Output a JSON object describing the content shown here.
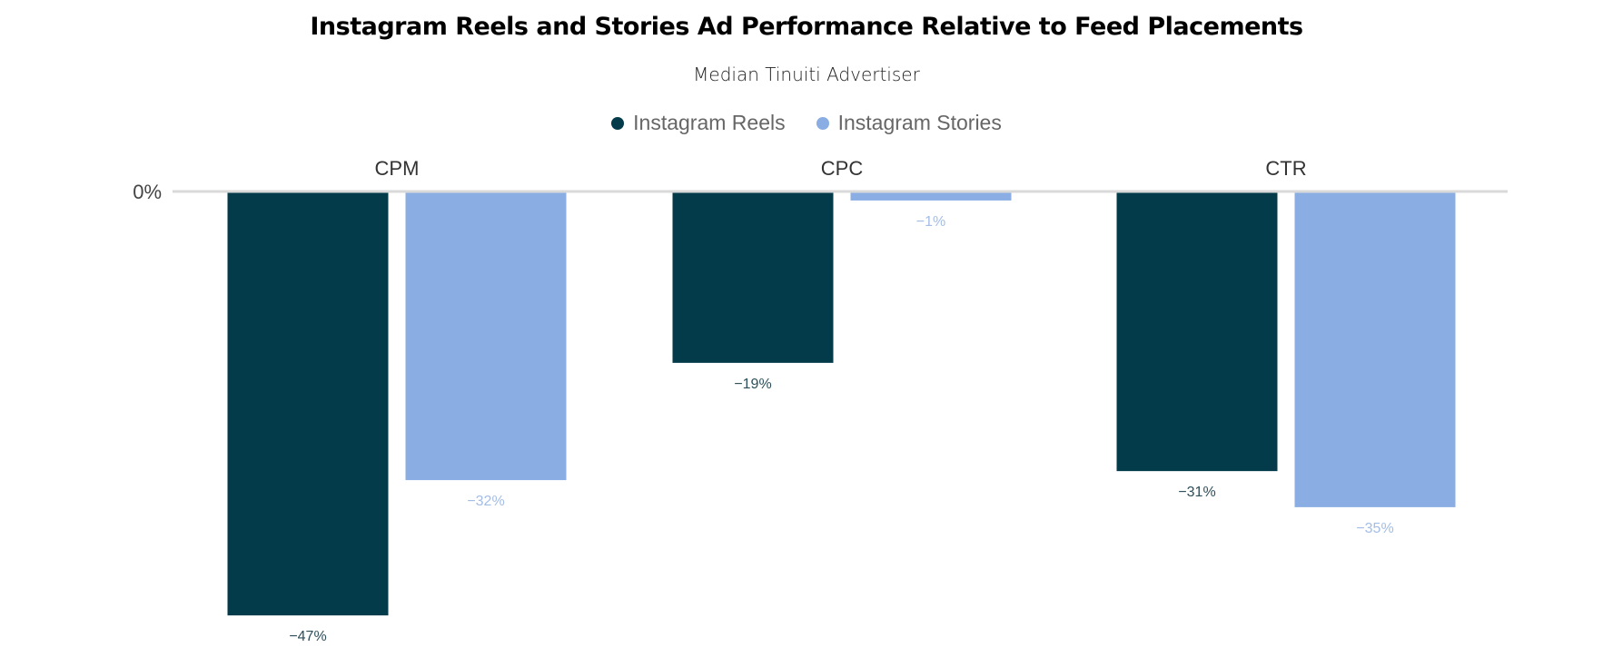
{
  "chart_data": {
    "type": "bar",
    "title": "Instagram Reels and Stories Ad Performance Relative to Feed Placements",
    "subtitle": "Median Tinuiti Advertiser",
    "categories": [
      "CPM",
      "CPC",
      "CTR"
    ],
    "series": [
      {
        "name": "Instagram Reels",
        "color": "#033b4a",
        "values": [
          -47,
          -19,
          -31
        ],
        "labels": [
          "−47%",
          "−19%",
          "−31%"
        ]
      },
      {
        "name": "Instagram Stories",
        "color": "#8aaee3",
        "values": [
          -32,
          -1,
          -35
        ],
        "labels": [
          "−32%",
          "−1%",
          "−35%"
        ]
      }
    ],
    "xlabel": "",
    "ylabel": "",
    "yticks": [
      {
        "value": 0,
        "label": "0%"
      }
    ],
    "ylim": [
      -50,
      0
    ],
    "legend_position": "top-center",
    "category_label_position": "top",
    "grid": false,
    "baseline_color": "#d9d9d9"
  }
}
